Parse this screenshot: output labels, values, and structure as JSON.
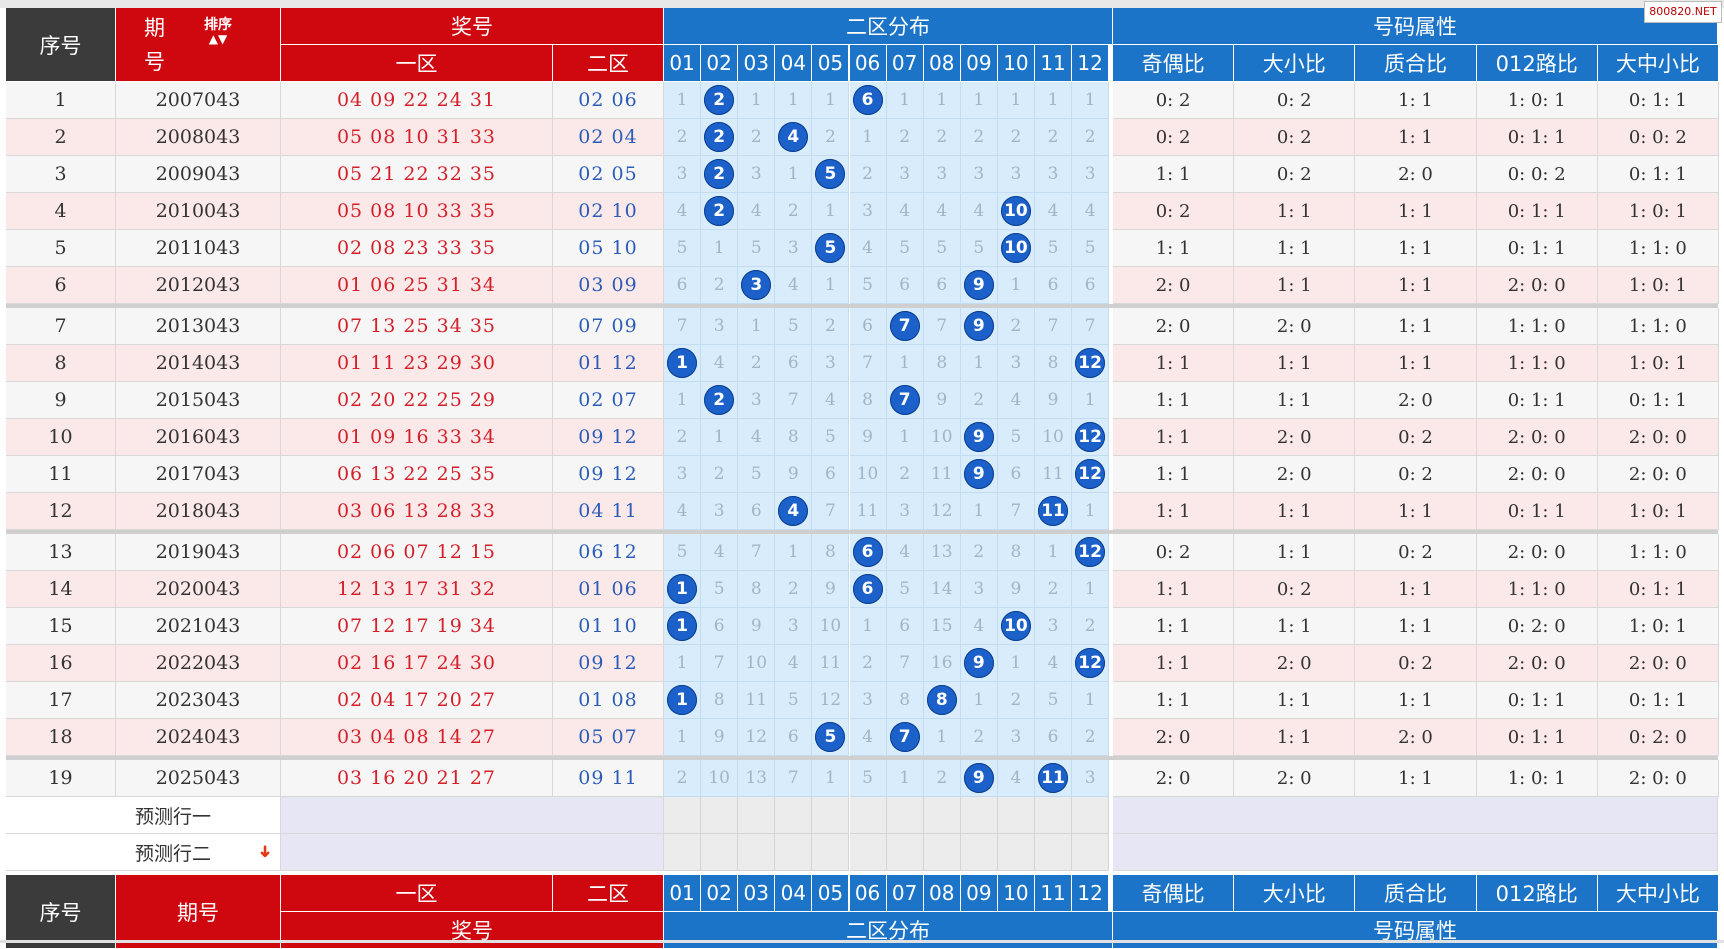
{
  "watermark": "800820.NET",
  "header": {
    "seq": "序号",
    "issue_top": "期",
    "issue_bottom": "号",
    "sort": "排序",
    "prize": "奖号",
    "zone1": "一区",
    "zone2": "二区",
    "dist": "二区分布",
    "attr": "号码属性",
    "nums": [
      "01",
      "02",
      "03",
      "04",
      "05",
      "06",
      "07",
      "08",
      "09",
      "10",
      "11",
      "12"
    ],
    "attrs": [
      "奇偶比",
      "大小比",
      "质合比",
      "012路比",
      "大中小比"
    ]
  },
  "footer": {
    "seq": "序号",
    "issue": "期号",
    "zone1": "一区",
    "zone2": "二区",
    "prize": "奖号",
    "dist": "二区分布",
    "attr": "号码属性"
  },
  "predict": [
    "预测行一",
    "预测行二"
  ],
  "rows": [
    {
      "seq": "1",
      "issue": "2007043",
      "z1": "04 09 22 24 31",
      "z2": "02 06",
      "dist": [
        "1",
        "2",
        "1",
        "1",
        "1",
        "6",
        "1",
        "1",
        "1",
        "1",
        "1",
        "1"
      ],
      "attr": [
        "0: 2",
        "0: 2",
        "1: 1",
        "1: 0: 1",
        "0: 1: 1"
      ]
    },
    {
      "seq": "2",
      "issue": "2008043",
      "z1": "05 08 10 31 33",
      "z2": "02 04",
      "dist": [
        "2",
        "2",
        "2",
        "4",
        "2",
        "1",
        "2",
        "2",
        "2",
        "2",
        "2",
        "2"
      ],
      "attr": [
        "0: 2",
        "0: 2",
        "1: 1",
        "0: 1: 1",
        "0: 0: 2"
      ]
    },
    {
      "seq": "3",
      "issue": "2009043",
      "z1": "05 21 22 32 35",
      "z2": "02 05",
      "dist": [
        "3",
        "2",
        "3",
        "1",
        "5",
        "2",
        "3",
        "3",
        "3",
        "3",
        "3",
        "3"
      ],
      "attr": [
        "1: 1",
        "0: 2",
        "2: 0",
        "0: 0: 2",
        "0: 1: 1"
      ]
    },
    {
      "seq": "4",
      "issue": "2010043",
      "z1": "05 08 10 33 35",
      "z2": "02 10",
      "dist": [
        "4",
        "2",
        "4",
        "2",
        "1",
        "3",
        "4",
        "4",
        "4",
        "10",
        "4",
        "4"
      ],
      "attr": [
        "0: 2",
        "1: 1",
        "1: 1",
        "0: 1: 1",
        "1: 0: 1"
      ]
    },
    {
      "seq": "5",
      "issue": "2011043",
      "z1": "02 08 23 33 35",
      "z2": "05 10",
      "dist": [
        "5",
        "1",
        "5",
        "3",
        "5",
        "4",
        "5",
        "5",
        "5",
        "10",
        "5",
        "5"
      ],
      "attr": [
        "1: 1",
        "1: 1",
        "1: 1",
        "0: 1: 1",
        "1: 1: 0"
      ]
    },
    {
      "seq": "6",
      "issue": "2012043",
      "z1": "01 06 25 31 34",
      "z2": "03 09",
      "dist": [
        "6",
        "2",
        "3",
        "4",
        "1",
        "5",
        "6",
        "6",
        "9",
        "1",
        "6",
        "6"
      ],
      "attr": [
        "2: 0",
        "1: 1",
        "1: 1",
        "2: 0: 0",
        "1: 0: 1"
      ]
    },
    {
      "seq": "7",
      "issue": "2013043",
      "z1": "07 13 25 34 35",
      "z2": "07 09",
      "dist": [
        "7",
        "3",
        "1",
        "5",
        "2",
        "6",
        "7",
        "7",
        "9",
        "2",
        "7",
        "7"
      ],
      "attr": [
        "2: 0",
        "2: 0",
        "1: 1",
        "1: 1: 0",
        "1: 1: 0"
      ]
    },
    {
      "seq": "8",
      "issue": "2014043",
      "z1": "01 11 23 29 30",
      "z2": "01 12",
      "dist": [
        "1",
        "4",
        "2",
        "6",
        "3",
        "7",
        "1",
        "8",
        "1",
        "3",
        "8",
        "12"
      ],
      "attr": [
        "1: 1",
        "1: 1",
        "1: 1",
        "1: 1: 0",
        "1: 0: 1"
      ]
    },
    {
      "seq": "9",
      "issue": "2015043",
      "z1": "02 20 22 25 29",
      "z2": "02 07",
      "dist": [
        "1",
        "2",
        "3",
        "7",
        "4",
        "8",
        "7",
        "9",
        "2",
        "4",
        "9",
        "1"
      ],
      "attr": [
        "1: 1",
        "1: 1",
        "2: 0",
        "0: 1: 1",
        "0: 1: 1"
      ]
    },
    {
      "seq": "10",
      "issue": "2016043",
      "z1": "01 09 16 33 34",
      "z2": "09 12",
      "dist": [
        "2",
        "1",
        "4",
        "8",
        "5",
        "9",
        "1",
        "10",
        "9",
        "5",
        "10",
        "12"
      ],
      "attr": [
        "1: 1",
        "2: 0",
        "0: 2",
        "2: 0: 0",
        "2: 0: 0"
      ]
    },
    {
      "seq": "11",
      "issue": "2017043",
      "z1": "06 13 22 25 35",
      "z2": "09 12",
      "dist": [
        "3",
        "2",
        "5",
        "9",
        "6",
        "10",
        "2",
        "11",
        "9",
        "6",
        "11",
        "12"
      ],
      "attr": [
        "1: 1",
        "2: 0",
        "0: 2",
        "2: 0: 0",
        "2: 0: 0"
      ]
    },
    {
      "seq": "12",
      "issue": "2018043",
      "z1": "03 06 13 28 33",
      "z2": "04 11",
      "dist": [
        "4",
        "3",
        "6",
        "4",
        "7",
        "11",
        "3",
        "12",
        "1",
        "7",
        "11",
        "1"
      ],
      "attr": [
        "1: 1",
        "1: 1",
        "1: 1",
        "0: 1: 1",
        "1: 0: 1"
      ]
    },
    {
      "seq": "13",
      "issue": "2019043",
      "z1": "02 06 07 12 15",
      "z2": "06 12",
      "dist": [
        "5",
        "4",
        "7",
        "1",
        "8",
        "6",
        "4",
        "13",
        "2",
        "8",
        "1",
        "12"
      ],
      "attr": [
        "0: 2",
        "1: 1",
        "0: 2",
        "2: 0: 0",
        "1: 1: 0"
      ]
    },
    {
      "seq": "14",
      "issue": "2020043",
      "z1": "12 13 17 31 32",
      "z2": "01 06",
      "dist": [
        "1",
        "5",
        "8",
        "2",
        "9",
        "6",
        "5",
        "14",
        "3",
        "9",
        "2",
        "1"
      ],
      "attr": [
        "1: 1",
        "0: 2",
        "1: 1",
        "1: 1: 0",
        "0: 1: 1"
      ]
    },
    {
      "seq": "15",
      "issue": "2021043",
      "z1": "07 12 17 19 34",
      "z2": "01 10",
      "dist": [
        "1",
        "6",
        "9",
        "3",
        "10",
        "1",
        "6",
        "15",
        "4",
        "10",
        "3",
        "2"
      ],
      "attr": [
        "1: 1",
        "1: 1",
        "1: 1",
        "0: 2: 0",
        "1: 0: 1"
      ]
    },
    {
      "seq": "16",
      "issue": "2022043",
      "z1": "02 16 17 24 30",
      "z2": "09 12",
      "dist": [
        "1",
        "7",
        "10",
        "4",
        "11",
        "2",
        "7",
        "16",
        "9",
        "1",
        "4",
        "12"
      ],
      "attr": [
        "1: 1",
        "2: 0",
        "0: 2",
        "2: 0: 0",
        "2: 0: 0"
      ]
    },
    {
      "seq": "17",
      "issue": "2023043",
      "z1": "02 04 17 20 27",
      "z2": "01 08",
      "dist": [
        "1",
        "8",
        "11",
        "5",
        "12",
        "3",
        "8",
        "8",
        "1",
        "2",
        "5",
        "1"
      ],
      "attr": [
        "1: 1",
        "1: 1",
        "1: 1",
        "0: 1: 1",
        "0: 1: 1"
      ]
    },
    {
      "seq": "18",
      "issue": "2024043",
      "z1": "03 04 08 14 27",
      "z2": "05 07",
      "dist": [
        "1",
        "9",
        "12",
        "6",
        "5",
        "4",
        "7",
        "1",
        "2",
        "3",
        "6",
        "2"
      ],
      "attr": [
        "2: 0",
        "1: 1",
        "2: 0",
        "0: 1: 1",
        "0: 2: 0"
      ]
    },
    {
      "seq": "19",
      "issue": "2025043",
      "z1": "03 16 20 21 27",
      "z2": "09 11",
      "dist": [
        "2",
        "10",
        "13",
        "7",
        "1",
        "5",
        "1",
        "2",
        "9",
        "4",
        "11",
        "3"
      ],
      "attr": [
        "2: 0",
        "2: 0",
        "1: 1",
        "1: 0: 1",
        "2: 0: 0"
      ]
    }
  ],
  "colors": {
    "header_red": "#cf0810",
    "header_blue": "#1b74c7",
    "header_dark": "#3b3b3b",
    "ball": "#1c61c9",
    "zone1_text": "#d42029",
    "zone2_text": "#2b5cb8"
  }
}
